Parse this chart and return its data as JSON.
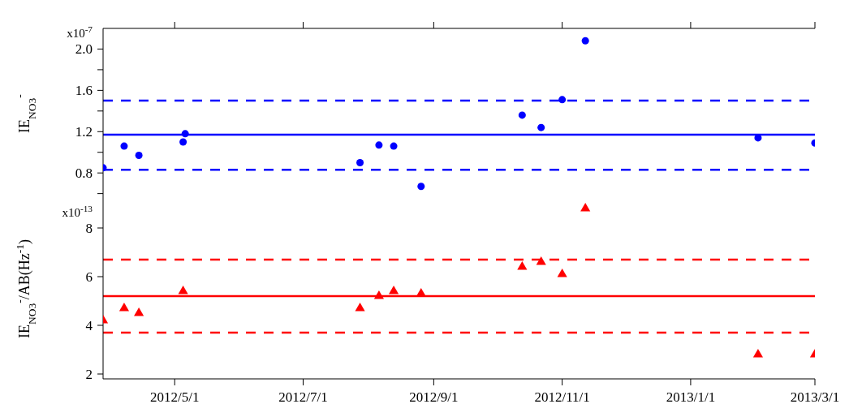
{
  "chart_data": [
    {
      "type": "scatter",
      "ylabel": "IE$_{NO3}$$^{-}$",
      "marker": "circle",
      "x": [
        "2012-03-28",
        "2012-04-07",
        "2012-04-14",
        "2012-05-05",
        "2012-05-06",
        "2012-07-28",
        "2012-08-06",
        "2012-08-13",
        "2012-08-26",
        "2012-10-13",
        "2012-10-22",
        "2012-11-01",
        "2012-11-12",
        "2013-02-02",
        "2013-03-01"
      ],
      "series": [
        {
          "color": "#0000ff",
          "values": [
            0.85,
            1.06,
            0.97,
            1.1,
            1.18,
            0.9,
            1.07,
            1.06,
            0.67,
            1.36,
            1.24,
            1.51,
            2.08,
            1.14,
            1.09
          ]
        }
      ],
      "xlim": [
        "2012-03-28",
        "2013-03-01"
      ],
      "tick_labels": "y",
      "xticks": [
        {
          "value": "2012-05-01",
          "label": null
        },
        {
          "value": "2012-07-01",
          "label": null
        },
        {
          "value": "2012-09-01",
          "label": null
        },
        {
          "value": "2012-11-01",
          "label": null
        },
        {
          "value": "2013-01-01",
          "label": null
        },
        {
          "value": "2013-03-01",
          "label": null
        }
      ],
      "ylim": [
        0.55,
        2.2
      ],
      "annotations": [
        "x10$^{-7}$"
      ],
      "yticks": [
        {
          "value": 2.0,
          "label": "2.0"
        },
        {
          "value": 1.8,
          "label": null
        },
        {
          "value": 1.6,
          "label": "1.6"
        },
        {
          "value": 1.4,
          "label": null
        },
        {
          "value": 1.2,
          "label": "1.2"
        },
        {
          "value": 1.0,
          "label": null
        },
        {
          "value": 0.8,
          "label": "0.8"
        },
        {
          "value": 0.6,
          "label": null
        }
      ],
      "ref_lines": [
        {
          "axis": "y",
          "value": 1.17,
          "color": "#0000ff",
          "line_style": "solid"
        },
        {
          "axis": "y",
          "value": 1.5,
          "color": "#0000ff",
          "line_style": "dashed"
        },
        {
          "axis": "y",
          "value": 0.83,
          "color": "#0000ff",
          "line_style": "dashed"
        }
      ]
    },
    {
      "type": "scatter",
      "ylabel": "IE$_{NO3}$$^{-}$/AB(Hz$^{-1}$)",
      "marker": "triangle",
      "x": [
        "2012-03-28",
        "2012-04-07",
        "2012-04-14",
        "2012-05-05",
        "2012-07-28",
        "2012-08-06",
        "2012-08-13",
        "2012-08-26",
        "2012-10-13",
        "2012-10-22",
        "2012-11-01",
        "2012-11-12",
        "2013-02-02",
        "2013-03-01"
      ],
      "series": [
        {
          "color": "#ff0000",
          "values": [
            4.2,
            4.7,
            4.5,
            5.4,
            4.7,
            5.2,
            5.4,
            5.3,
            6.4,
            6.6,
            6.1,
            8.8,
            2.8,
            2.8
          ]
        }
      ],
      "xlim": [
        "2012-03-28",
        "2013-03-01"
      ],
      "xticks": [
        {
          "value": "2012-05-01",
          "label": "2012/5/1"
        },
        {
          "value": "2012-07-01",
          "label": "2012/7/1"
        },
        {
          "value": "2012-09-01",
          "label": "2012/9/1"
        },
        {
          "value": "2012-11-01",
          "label": "2012/11/1"
        },
        {
          "value": "2013-01-01",
          "label": "2013/1/1"
        },
        {
          "value": "2013-03-01",
          "label": "2013/3/1"
        }
      ],
      "ylim": [
        1.8,
        9.2
      ],
      "annotations": [
        "x10$^{-13}$"
      ],
      "yticks": [
        8,
        6,
        4,
        2
      ],
      "ref_lines": [
        {
          "axis": "y",
          "value": 5.2,
          "color": "#ff0000",
          "line_style": "solid"
        },
        {
          "axis": "y",
          "value": 6.7,
          "color": "#ff0000",
          "line_style": "dashed"
        },
        {
          "axis": "y",
          "value": 3.7,
          "color": "#ff0000",
          "line_style": "dashed"
        }
      ]
    }
  ]
}
